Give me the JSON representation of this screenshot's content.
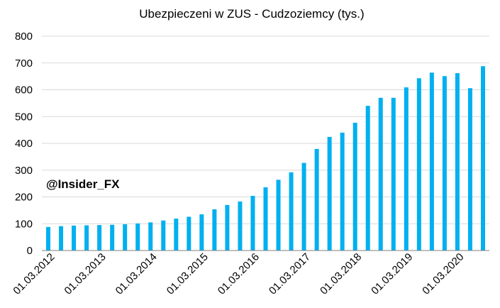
{
  "chart_data": {
    "type": "bar",
    "title": "Ubezpieczeni w ZUS - Cudzoziemcy (tys.)",
    "watermark": "@Insider_FX",
    "bar_color": "#00b0f0",
    "ylim": [
      0,
      800
    ],
    "yticks": [
      "0",
      "100",
      "200",
      "300",
      "400",
      "500",
      "600",
      "700",
      "800"
    ],
    "grid": true,
    "legend": "none",
    "x_tick_labels": [
      "01.03.2012",
      "01.03.2013",
      "01.03.2014",
      "01.03.2015",
      "01.03.2016",
      "01.03.2017",
      "01.03.2018",
      "01.03.2019",
      "01.03.2020"
    ],
    "values": [
      88,
      91,
      93,
      94,
      95,
      96,
      98,
      101,
      105,
      112,
      119,
      126,
      135,
      154,
      170,
      183,
      204,
      236,
      264,
      292,
      327,
      379,
      424,
      440,
      477,
      540,
      570,
      570,
      609,
      643,
      664,
      651,
      662,
      606,
      688
    ]
  }
}
